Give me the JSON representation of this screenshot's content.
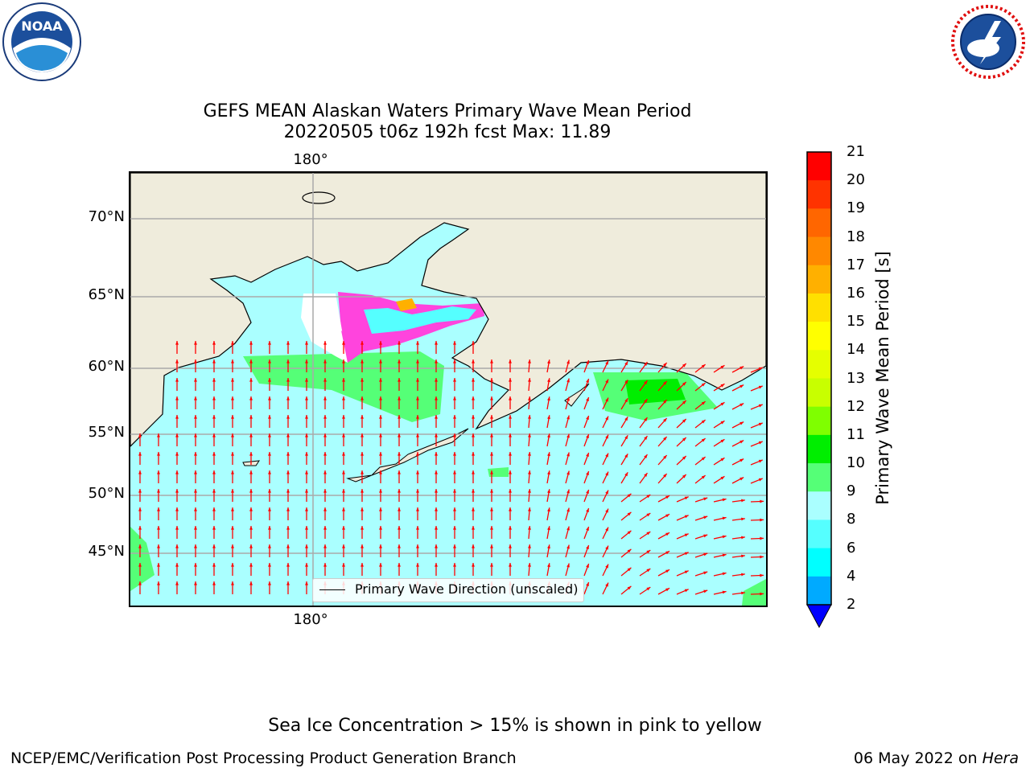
{
  "header": {
    "title_line1": "GEFS MEAN Alaskan Waters Primary Wave Mean Period",
    "title_line2": "20220505 t06z 192h fcst   Max: 11.89"
  },
  "logos": {
    "left": "NOAA",
    "right": "NATIONAL WEATHER SERVICE"
  },
  "map": {
    "lat_labels": [
      "70°N",
      "65°N",
      "60°N",
      "55°N",
      "50°N",
      "45°N"
    ],
    "lon_label_top": "180°",
    "lon_label_bottom": "180°",
    "legend_label": "Primary Wave Direction (unscaled)",
    "ocean_color": "#aaffff",
    "land_color": "#efecdc",
    "arrow_color": "#ff0000"
  },
  "colorbar": {
    "title": "Primary Wave Mean Period [s]",
    "ticks": [
      "21",
      "20",
      "19",
      "18",
      "17",
      "16",
      "15",
      "14",
      "13",
      "12",
      "11",
      "10",
      "9",
      "8",
      "6",
      "4",
      "2"
    ],
    "colors": [
      "#ff0000",
      "#ff3300",
      "#ff6600",
      "#ff8800",
      "#ffb000",
      "#ffe000",
      "#ffff00",
      "#e5ff00",
      "#c8ff00",
      "#7fff00",
      "#00ee00",
      "#55ff77",
      "#aaffff",
      "#55ffff",
      "#00ffff",
      "#00aaff",
      "#0066ff"
    ],
    "extend_color": "#0000ff"
  },
  "footer": {
    "note": "Sea Ice Concentration > 15% is shown in pink to yellow",
    "credit": "NCEP/EMC/Verification Post Processing Product Generation Branch",
    "date": "06 May 2022 on",
    "system": "Hera"
  }
}
